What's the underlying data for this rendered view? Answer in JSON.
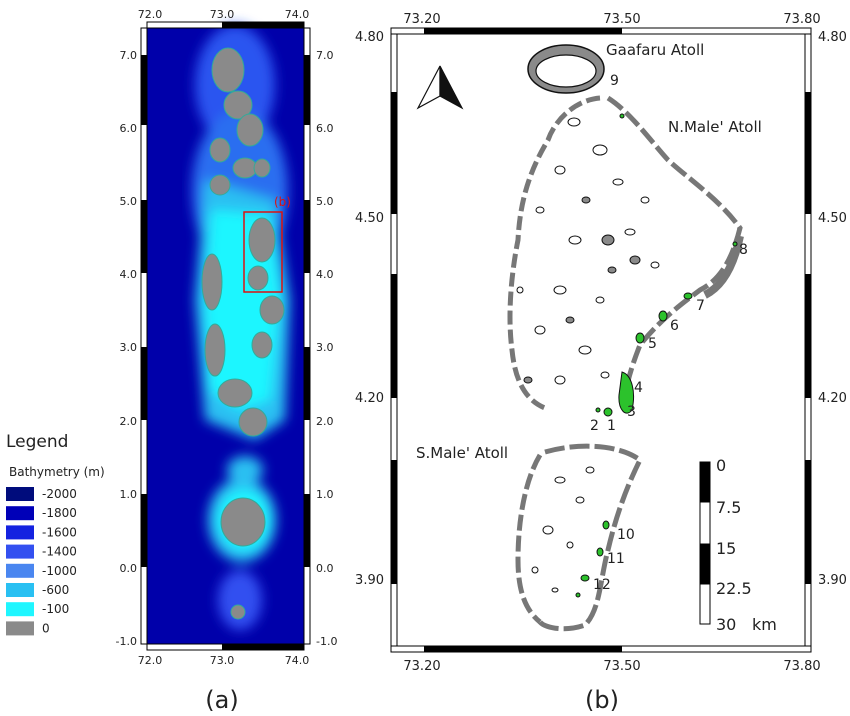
{
  "panel_a": {
    "label": "(a)",
    "lon_ticks": [
      "72.0",
      "73.0",
      "74.0"
    ],
    "lat_ticks": [
      "7.0",
      "6.0",
      "5.0",
      "4.0",
      "3.0",
      "2.0",
      "1.0",
      "0.0",
      "-1.0"
    ],
    "inset_label": "(b)"
  },
  "legend": {
    "title": "Legend",
    "subtitle": "Bathymetry (m)",
    "items": [
      {
        "label": "-2000",
        "color": "#000c7c"
      },
      {
        "label": "-1800",
        "color": "#0000b8"
      },
      {
        "label": "-1600",
        "color": "#1422e0"
      },
      {
        "label": "-1400",
        "color": "#3350f0"
      },
      {
        "label": "-1000",
        "color": "#4a86f0"
      },
      {
        "label": "-600",
        "color": "#29c0f2"
      },
      {
        "label": "-100",
        "color": "#1ff6ff"
      },
      {
        "label": "0",
        "color": "#8a8a8a"
      }
    ]
  },
  "panel_b": {
    "label": "(b)",
    "lon_ticks": [
      "73.20",
      "73.50",
      "73.80"
    ],
    "lat_ticks": [
      "4.80",
      "4.50",
      "4.20",
      "3.90"
    ],
    "atolls": [
      "Gaafaru Atoll",
      "N.Male' Atoll",
      "S.Male' Atoll"
    ],
    "sites": [
      "1",
      "2",
      "3",
      "4",
      "5",
      "6",
      "7",
      "8",
      "9",
      "10",
      "11",
      "12"
    ],
    "scale_ticks": [
      "0",
      "7.5",
      "15",
      "22.5",
      "30"
    ],
    "scale_unit": "km"
  }
}
